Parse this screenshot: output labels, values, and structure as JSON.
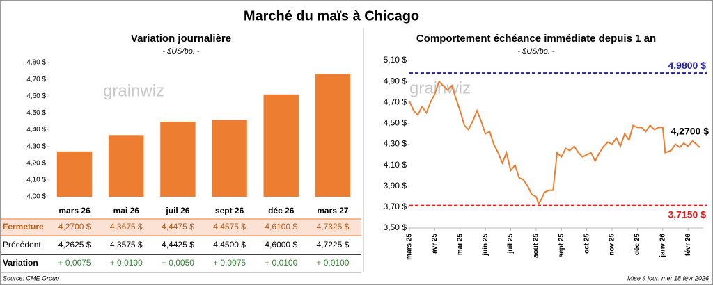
{
  "title": "Marché du maïs à Chicago",
  "watermark": "grainwiz",
  "chart_data": [
    {
      "type": "bar",
      "title": "Variation journalière",
      "subtitle": "- $US/bo. -",
      "categories": [
        "mars 26",
        "mai 26",
        "juil 26",
        "sept 26",
        "déc 26",
        "mars 27"
      ],
      "series": [
        {
          "name": "Fermeture",
          "color": "#ed7d31",
          "values": [
            4.27,
            4.3675,
            4.4475,
            4.4575,
            4.61,
            4.7325
          ],
          "value_labels": [
            "4,2700 $",
            "4,3675 $",
            "4,4475 $",
            "4,4575 $",
            "4,6100 $",
            "4,7325 $"
          ]
        }
      ],
      "ylim": [
        4.0,
        4.8
      ],
      "yticks": [
        {
          "value": 4.0,
          "label": "4,00 $"
        },
        {
          "value": 4.1,
          "label": "4,10 $"
        },
        {
          "value": 4.2,
          "label": "4,20 $"
        },
        {
          "value": 4.3,
          "label": "4,30 $"
        },
        {
          "value": 4.4,
          "label": "4,40 $"
        },
        {
          "value": 4.5,
          "label": "4,50 $"
        },
        {
          "value": 4.6,
          "label": "4,60 $"
        },
        {
          "value": 4.7,
          "label": "4,70 $"
        },
        {
          "value": 4.8,
          "label": "4,80 $"
        }
      ],
      "grid": false
    },
    {
      "type": "line",
      "title": "Comportement  échéance immédiate depuis 1 an",
      "subtitle": "- $US/bo. -",
      "x": [
        0,
        0.17,
        0.33,
        0.5,
        0.67,
        0.83,
        1.0,
        1.17,
        1.33,
        1.5,
        1.67,
        1.83,
        2.0,
        2.17,
        2.33,
        2.5,
        2.67,
        2.83,
        3.0,
        3.17,
        3.33,
        3.5,
        3.67,
        3.83,
        4.0,
        4.17,
        4.33,
        4.5,
        4.67,
        4.83,
        5.0,
        5.1,
        5.2,
        5.33,
        5.5,
        5.67,
        5.83,
        6.0,
        6.17,
        6.33,
        6.5,
        6.67,
        6.83,
        7.0,
        7.17,
        7.33,
        7.5,
        7.67,
        7.83,
        8.0,
        8.17,
        8.33,
        8.5,
        8.67,
        8.83,
        9.0,
        9.17,
        9.33,
        9.5,
        9.67,
        9.83,
        10.0,
        10.1,
        10.33,
        10.5,
        10.67,
        10.83,
        11.0,
        11.17,
        11.33,
        11.46
      ],
      "series": [
        {
          "name": "Échéance immédiate",
          "color": "#ed7d31",
          "values": [
            4.71,
            4.62,
            4.58,
            4.66,
            4.6,
            4.7,
            4.78,
            4.9,
            4.86,
            4.82,
            4.86,
            4.74,
            4.62,
            4.48,
            4.44,
            4.52,
            4.62,
            4.52,
            4.4,
            4.42,
            4.3,
            4.22,
            4.12,
            4.22,
            4.05,
            4.1,
            3.98,
            3.96,
            3.9,
            3.82,
            3.8,
            3.73,
            3.77,
            3.84,
            3.86,
            3.86,
            4.22,
            4.18,
            4.26,
            4.24,
            4.28,
            4.22,
            4.18,
            4.2,
            4.22,
            4.14,
            4.22,
            4.28,
            4.32,
            4.3,
            4.36,
            4.28,
            4.4,
            4.34,
            4.48,
            4.46,
            4.46,
            4.42,
            4.48,
            4.44,
            4.46,
            4.46,
            4.22,
            4.24,
            4.3,
            4.27,
            4.31,
            4.28,
            4.33,
            4.3,
            4.27
          ]
        }
      ],
      "last_label": "4,2700 $",
      "reference_lines": [
        {
          "value": 4.98,
          "label": "4,9800 $",
          "color": "#2323a8"
        },
        {
          "value": 3.715,
          "label": "3,7150 $",
          "color": "#e81c1c"
        }
      ],
      "xlim": [
        0,
        11.6
      ],
      "xticks": [
        {
          "value": 0,
          "label": "mars 25"
        },
        {
          "value": 1,
          "label": "avr 25"
        },
        {
          "value": 2,
          "label": "mai 25"
        },
        {
          "value": 3,
          "label": "juin 25"
        },
        {
          "value": 4,
          "label": "juil 25"
        },
        {
          "value": 5,
          "label": "août 25"
        },
        {
          "value": 6,
          "label": "sept 25"
        },
        {
          "value": 7,
          "label": "oct 25"
        },
        {
          "value": 8,
          "label": "nov 25"
        },
        {
          "value": 9,
          "label": "déc 25"
        },
        {
          "value": 10,
          "label": "janv 26"
        },
        {
          "value": 11,
          "label": "févr 26"
        }
      ],
      "ylim": [
        3.5,
        5.1
      ],
      "yticks": [
        {
          "value": 3.5,
          "label": "3,50 $"
        },
        {
          "value": 3.7,
          "label": "3,70 $"
        },
        {
          "value": 3.9,
          "label": "3,90 $"
        },
        {
          "value": 4.1,
          "label": "4,10 $"
        },
        {
          "value": 4.3,
          "label": "4,30 $"
        },
        {
          "value": 4.5,
          "label": "4,50 $"
        },
        {
          "value": 4.7,
          "label": "4,70 $"
        },
        {
          "value": 4.9,
          "label": "4,90 $"
        },
        {
          "value": 5.1,
          "label": "5,10 $"
        }
      ],
      "grid": false
    }
  ],
  "table": {
    "rows": [
      [
        "Précédent",
        "4,2625 $",
        "4,3575 $",
        "4,4425 $",
        "4,4500 $",
        "4,6000 $",
        "4,7225 $"
      ],
      [
        "Variation",
        "+ 0,0075",
        "+ 0,0100",
        "+ 0,0050",
        "+ 0,0075",
        "+ 0,0100",
        "+ 0,0100"
      ]
    ]
  },
  "footer": {
    "source": "Source: CME Group",
    "updated": "Mise à jour: mer 18 févr 2026"
  }
}
